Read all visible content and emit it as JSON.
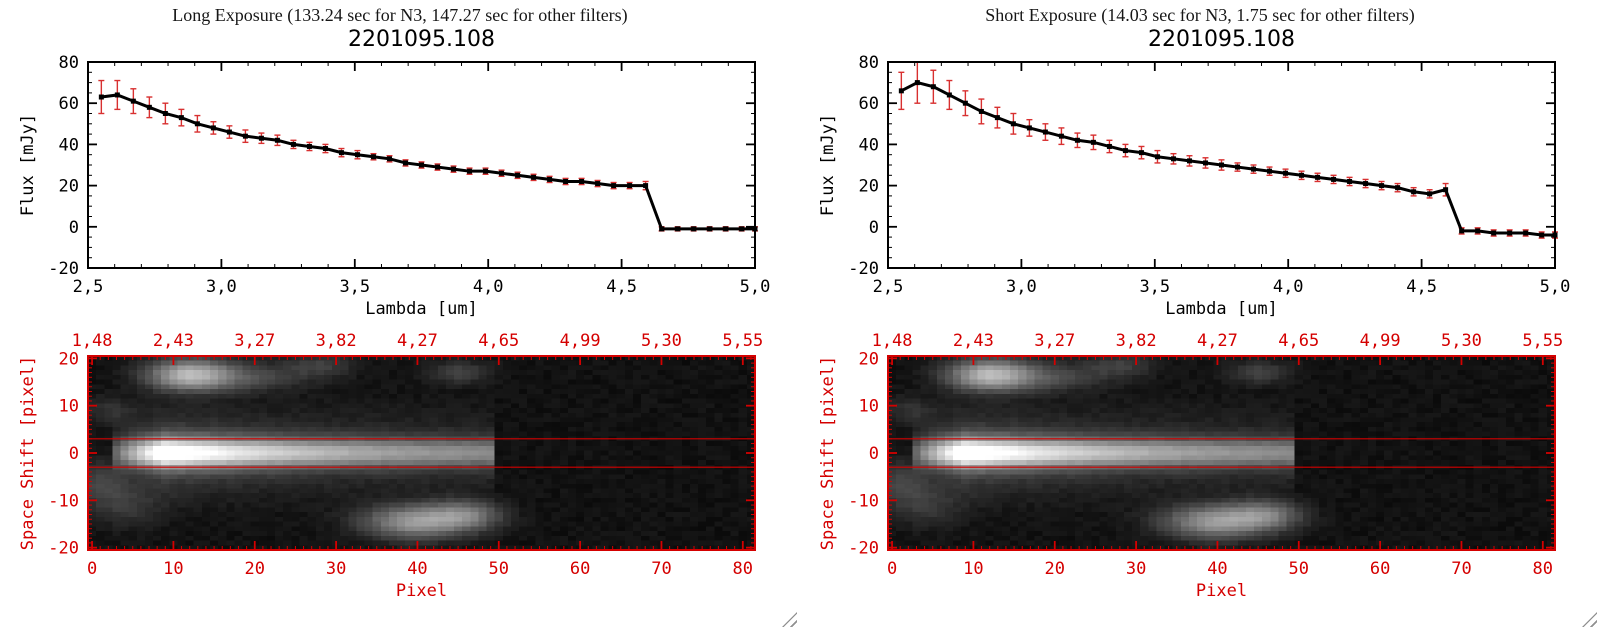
{
  "colors": {
    "axis_red": "#d40000",
    "error_red": "#d83030",
    "line_black": "#000000",
    "background": "#ffffff"
  },
  "panels": [
    {
      "title": "Long Exposure (133.24 sec for N3, 147.27 sec for other filters)",
      "plot_title": "2201095.108"
    },
    {
      "title": "Short Exposure (14.03 sec for N3, 1.75 sec for other filters)",
      "plot_title": "2201095.108"
    }
  ],
  "chart_data": [
    {
      "id": "spectrum-long",
      "panel": 0,
      "type": "line",
      "title": "2201095.108",
      "xlabel": "Lambda [um]",
      "ylabel": "Flux [mJy]",
      "xlim": [
        2.5,
        5.0
      ],
      "ylim": [
        -20,
        80
      ],
      "xticks": {
        "values": [
          2.5,
          3.0,
          3.5,
          4.0,
          4.5,
          5.0
        ],
        "labels": [
          "2,5",
          "3,0",
          "3,5",
          "4,0",
          "4,5",
          "5,0"
        ]
      },
      "yticks": {
        "values": [
          -20,
          0,
          20,
          40,
          60,
          80
        ],
        "labels": [
          "-20",
          "0",
          "20",
          "40",
          "60",
          "80"
        ]
      },
      "x_minor": 0.1,
      "y_minor": 5,
      "x": [
        2.55,
        2.61,
        2.67,
        2.73,
        2.79,
        2.85,
        2.91,
        2.97,
        3.03,
        3.09,
        3.15,
        3.21,
        3.27,
        3.33,
        3.39,
        3.45,
        3.51,
        3.57,
        3.63,
        3.69,
        3.75,
        3.81,
        3.87,
        3.93,
        3.99,
        4.05,
        4.11,
        4.17,
        4.23,
        4.29,
        4.35,
        4.41,
        4.47,
        4.53,
        4.59,
        4.65,
        4.71,
        4.77,
        4.83,
        4.89,
        4.95,
        5.0
      ],
      "y": [
        63,
        64,
        61,
        58,
        55,
        53,
        50,
        48,
        46,
        44,
        43,
        42,
        40,
        39,
        38,
        36,
        35,
        34,
        33,
        31,
        30,
        29,
        28,
        27,
        27,
        26,
        25,
        24,
        23,
        22,
        22,
        21,
        20,
        20,
        20,
        -1,
        -1,
        -1,
        -1,
        -1,
        -1,
        -1
      ],
      "yerr": [
        8,
        7,
        6,
        5,
        5,
        4,
        4,
        3,
        3,
        3,
        2.5,
        2.5,
        2,
        2,
        2,
        2,
        2,
        1.5,
        1.5,
        1.5,
        1.5,
        1.5,
        1.5,
        1.5,
        1.5,
        1.5,
        1.5,
        1.5,
        1.5,
        1.5,
        1.5,
        1.5,
        1.5,
        1.5,
        2,
        1,
        1,
        1,
        1,
        1,
        1,
        1
      ]
    },
    {
      "id": "image-long",
      "panel": 0,
      "type": "heatmap",
      "xlabel": "Pixel",
      "ylabel": "Space Shift [pixel]",
      "xlim": [
        -0.5,
        81.5
      ],
      "ylim": [
        -20.5,
        20.5
      ],
      "xticks": {
        "values": [
          0,
          10,
          20,
          30,
          40,
          50,
          60,
          70,
          80
        ],
        "labels": [
          "0",
          "10",
          "20",
          "30",
          "40",
          "50",
          "60",
          "70",
          "80"
        ]
      },
      "top_ticks": {
        "values": [
          0,
          10,
          20,
          30,
          40,
          50,
          60,
          70,
          80
        ],
        "labels": [
          "1,48",
          "2,43",
          "3,27",
          "3,82",
          "4,27",
          "4,65",
          "4,99",
          "5,30",
          "5,55"
        ]
      },
      "yticks": {
        "values": [
          -20,
          -10,
          0,
          10,
          20
        ],
        "labels": [
          "-20",
          "-10",
          "0",
          "10",
          "20"
        ]
      },
      "x_minor": 1,
      "y_minor": 1,
      "aperture_y": [
        3,
        -3
      ],
      "colormap": "grayscale",
      "features": [
        {
          "type": "trace",
          "x_start": 3,
          "x_end": 49,
          "peak_x": 9,
          "decay": 17,
          "y_center": 0,
          "sigma": 2.0,
          "halo_sigma": 5.5,
          "halo_amp": 0.22
        },
        {
          "type": "blob",
          "x": 12,
          "y": 16.5,
          "sx": 3.5,
          "sy": 2.2,
          "amp": 0.6
        },
        {
          "type": "blob",
          "x": 19,
          "y": 16,
          "sx": 5,
          "sy": 2,
          "amp": 0.18
        },
        {
          "type": "blob",
          "x": 28,
          "y": 18.5,
          "sx": 3,
          "sy": 1.6,
          "amp": 0.14
        },
        {
          "type": "blob",
          "x": 45,
          "y": 17,
          "sx": 2.6,
          "sy": 1.6,
          "amp": 0.16
        },
        {
          "type": "blob",
          "x": 40,
          "y": -14.5,
          "sx": 4.5,
          "sy": 2.4,
          "amp": 0.5
        },
        {
          "type": "blob",
          "x": 46,
          "y": -13,
          "sx": 3,
          "sy": 2,
          "amp": 0.3
        },
        {
          "type": "blob",
          "x": 1,
          "y": -6,
          "sx": 2,
          "sy": 3,
          "amp": 0.16
        },
        {
          "type": "blob",
          "x": 4,
          "y": -11,
          "sx": 3,
          "sy": 3,
          "amp": 0.12
        },
        {
          "type": "blob",
          "x": 2,
          "y": 9,
          "sx": 2,
          "sy": 2,
          "amp": 0.1
        }
      ]
    },
    {
      "id": "spectrum-short",
      "panel": 1,
      "type": "line",
      "title": "2201095.108",
      "xlabel": "Lambda [um]",
      "ylabel": "Flux [mJy]",
      "xlim": [
        2.5,
        5.0
      ],
      "ylim": [
        -20,
        80
      ],
      "xticks": {
        "values": [
          2.5,
          3.0,
          3.5,
          4.0,
          4.5,
          5.0
        ],
        "labels": [
          "2,5",
          "3,0",
          "3,5",
          "4,0",
          "4,5",
          "5,0"
        ]
      },
      "yticks": {
        "values": [
          -20,
          0,
          20,
          40,
          60,
          80
        ],
        "labels": [
          "-20",
          "0",
          "20",
          "40",
          "60",
          "80"
        ]
      },
      "x_minor": 0.1,
      "y_minor": 5,
      "x": [
        2.55,
        2.61,
        2.67,
        2.73,
        2.79,
        2.85,
        2.91,
        2.97,
        3.03,
        3.09,
        3.15,
        3.21,
        3.27,
        3.33,
        3.39,
        3.45,
        3.51,
        3.57,
        3.63,
        3.69,
        3.75,
        3.81,
        3.87,
        3.93,
        3.99,
        4.05,
        4.11,
        4.17,
        4.23,
        4.29,
        4.35,
        4.41,
        4.47,
        4.53,
        4.59,
        4.65,
        4.71,
        4.77,
        4.83,
        4.89,
        4.95,
        5.0
      ],
      "y": [
        66,
        70,
        68,
        64,
        60,
        56,
        53,
        50,
        48,
        46,
        44,
        42,
        41,
        39,
        37,
        36,
        34,
        33,
        32,
        31,
        30,
        29,
        28,
        27,
        26,
        25,
        24,
        23,
        22,
        21,
        20,
        19,
        17,
        16,
        18,
        -2,
        -2,
        -3,
        -3,
        -3,
        -4,
        -4
      ],
      "yerr": [
        9,
        10,
        8,
        7,
        6,
        6,
        5,
        5,
        4,
        4,
        4,
        3.5,
        3.5,
        3,
        3,
        3,
        3,
        2.5,
        2.5,
        2.5,
        2.5,
        2,
        2,
        2,
        2,
        2,
        2,
        2,
        2,
        2,
        2,
        2,
        2,
        2,
        3,
        1.5,
        1.5,
        1.5,
        1.5,
        1.5,
        1.5,
        1.5
      ]
    },
    {
      "id": "image-short",
      "panel": 1,
      "type": "heatmap",
      "xlabel": "Pixel",
      "ylabel": "Space Shift [pixel]",
      "xlim": [
        -0.5,
        81.5
      ],
      "ylim": [
        -20.5,
        20.5
      ],
      "xticks": {
        "values": [
          0,
          10,
          20,
          30,
          40,
          50,
          60,
          70,
          80
        ],
        "labels": [
          "0",
          "10",
          "20",
          "30",
          "40",
          "50",
          "60",
          "70",
          "80"
        ]
      },
      "top_ticks": {
        "values": [
          0,
          10,
          20,
          30,
          40,
          50,
          60,
          70,
          80
        ],
        "labels": [
          "1,48",
          "2,43",
          "3,27",
          "3,82",
          "4,27",
          "4,65",
          "4,99",
          "5,30",
          "5,55"
        ]
      },
      "yticks": {
        "values": [
          -20,
          -10,
          0,
          10,
          20
        ],
        "labels": [
          "-20",
          "-10",
          "0",
          "10",
          "20"
        ]
      },
      "x_minor": 1,
      "y_minor": 1,
      "aperture_y": [
        3,
        -3
      ],
      "colormap": "grayscale",
      "features": [
        {
          "type": "trace",
          "x_start": 3,
          "x_end": 49,
          "peak_x": 9,
          "decay": 17,
          "y_center": 0,
          "sigma": 2.0,
          "halo_sigma": 5.5,
          "halo_amp": 0.22
        },
        {
          "type": "blob",
          "x": 12,
          "y": 16.5,
          "sx": 3.5,
          "sy": 2.2,
          "amp": 0.6
        },
        {
          "type": "blob",
          "x": 19,
          "y": 16,
          "sx": 5,
          "sy": 2,
          "amp": 0.18
        },
        {
          "type": "blob",
          "x": 28,
          "y": 18.5,
          "sx": 3,
          "sy": 1.6,
          "amp": 0.14
        },
        {
          "type": "blob",
          "x": 45,
          "y": 17,
          "sx": 2.6,
          "sy": 1.6,
          "amp": 0.16
        },
        {
          "type": "blob",
          "x": 40,
          "y": -14.5,
          "sx": 4.5,
          "sy": 2.4,
          "amp": 0.5
        },
        {
          "type": "blob",
          "x": 46,
          "y": -13,
          "sx": 3,
          "sy": 2,
          "amp": 0.3
        },
        {
          "type": "blob",
          "x": 1,
          "y": -6,
          "sx": 2,
          "sy": 3,
          "amp": 0.16
        },
        {
          "type": "blob",
          "x": 4,
          "y": -11,
          "sx": 3,
          "sy": 3,
          "amp": 0.12
        },
        {
          "type": "blob",
          "x": 2,
          "y": 9,
          "sx": 2,
          "sy": 2,
          "amp": 0.1
        }
      ]
    }
  ]
}
